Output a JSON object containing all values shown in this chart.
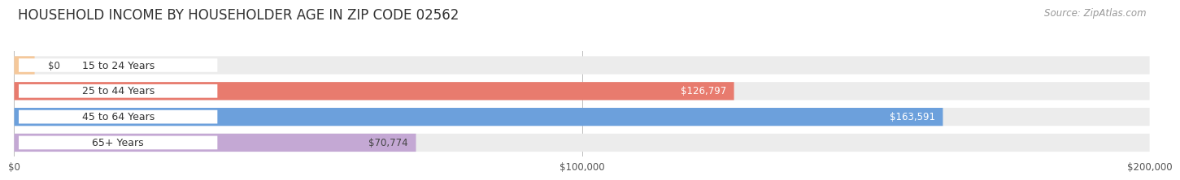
{
  "title": "HOUSEHOLD INCOME BY HOUSEHOLDER AGE IN ZIP CODE 02562",
  "source": "Source: ZipAtlas.com",
  "categories": [
    "15 to 24 Years",
    "25 to 44 Years",
    "45 to 64 Years",
    "65+ Years"
  ],
  "values": [
    0,
    126797,
    163591,
    70774
  ],
  "bar_colors": [
    "#f5c89a",
    "#e87b6e",
    "#6ca0dc",
    "#c4a8d4"
  ],
  "label_colors": [
    "#444444",
    "#ffffff",
    "#ffffff",
    "#444444"
  ],
  "label_texts": [
    "$0",
    "$126,797",
    "$163,591",
    "$70,774"
  ],
  "bar_bg_color": "#ececec",
  "bar_height": 0.7,
  "xlim": [
    0,
    200000
  ],
  "xtick_labels": [
    "$0",
    "$100,000",
    "$200,000"
  ],
  "title_fontsize": 12,
  "source_fontsize": 8.5,
  "label_fontsize": 8.5,
  "tick_fontsize": 8.5,
  "category_fontsize": 9,
  "background_color": "#ffffff"
}
